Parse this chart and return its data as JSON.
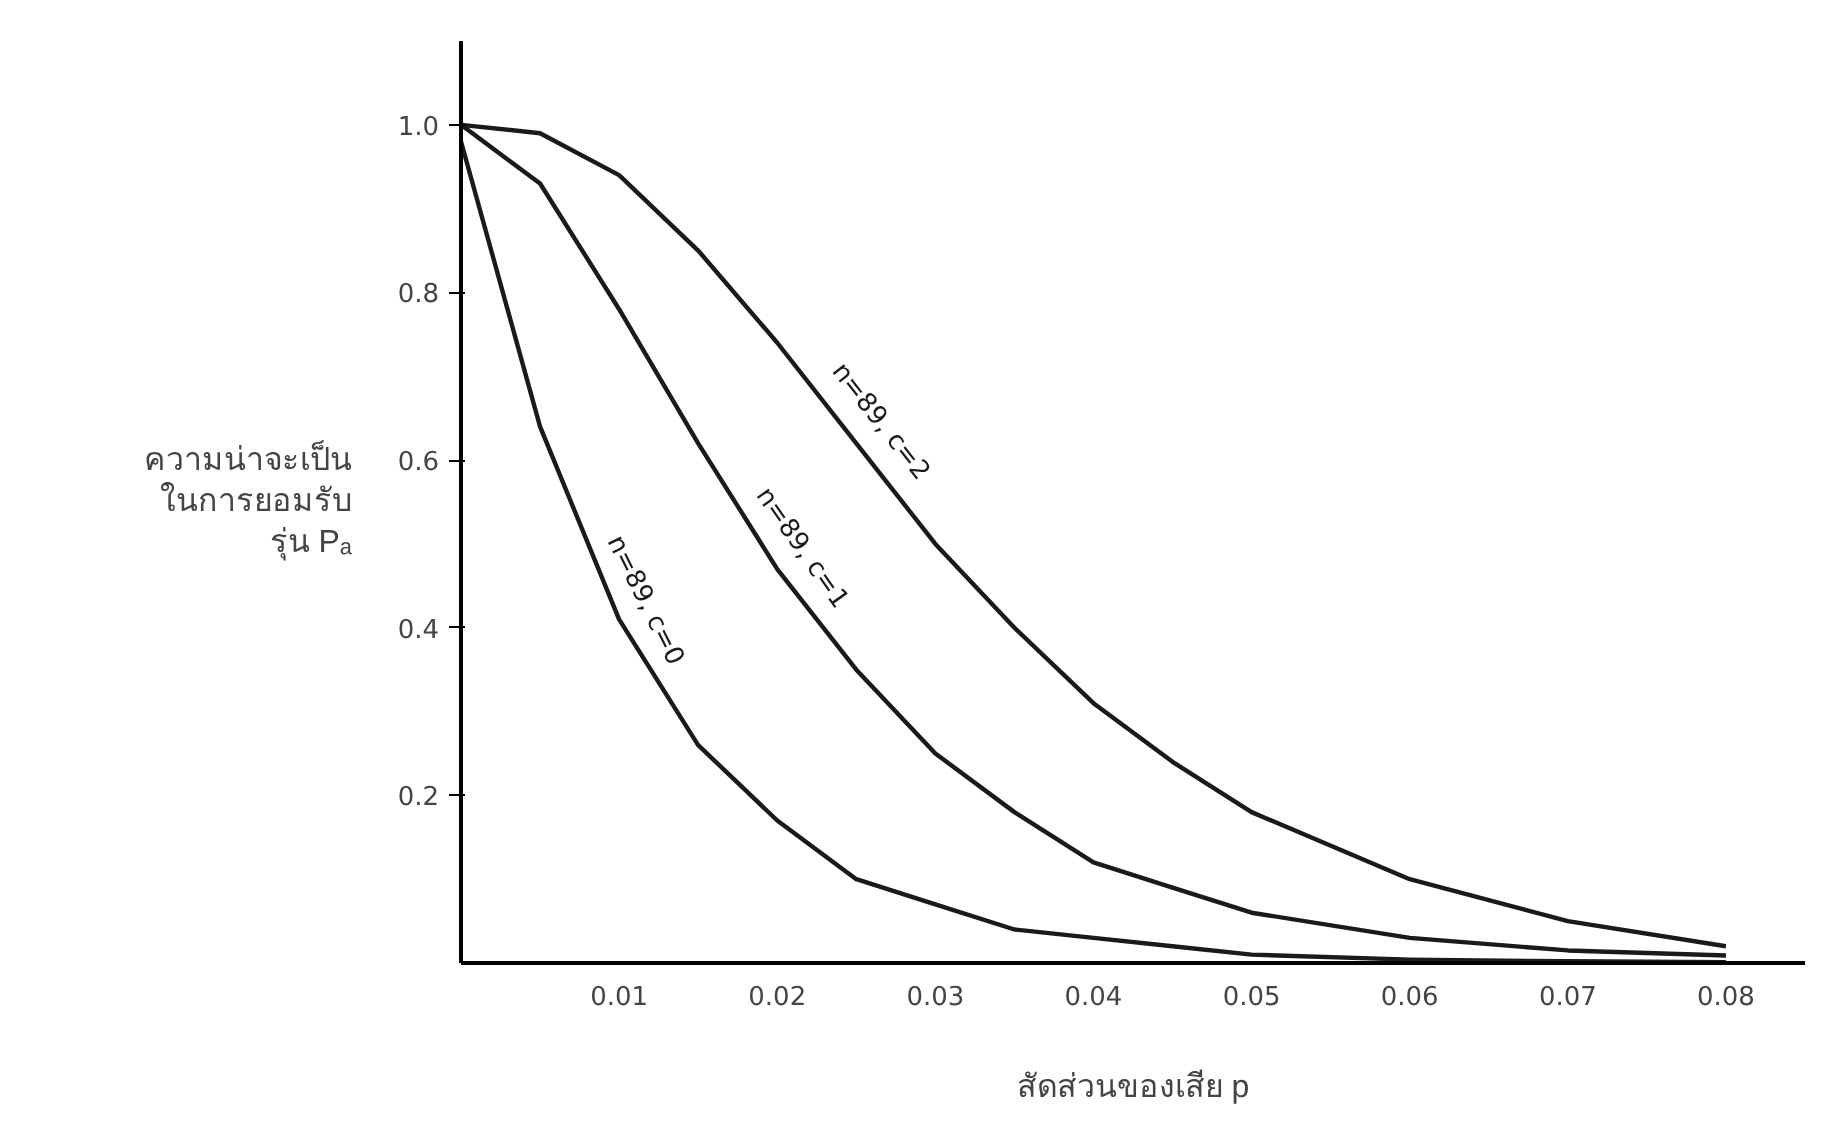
{
  "chart_data": {
    "type": "line",
    "xlabel": "สัดส่วนของเสีย p",
    "ylabel": "ความน่าจะเป็น\nในการยอมรับ\nรุ่น Pₐ",
    "x": [
      0,
      0.005,
      0.01,
      0.015,
      0.02,
      0.025,
      0.03,
      0.035,
      0.04,
      0.045,
      0.05,
      0.06,
      0.07,
      0.08
    ],
    "series": [
      {
        "name": "n=89, c=0",
        "color": "#1a1a1a",
        "values": [
          0.98,
          0.64,
          0.41,
          0.26,
          0.17,
          0.1,
          0.07,
          0.04,
          0.03,
          0.02,
          0.01,
          0.004,
          0.002,
          0.001
        ]
      },
      {
        "name": "n=89, c=1",
        "color": "#1a1a1a",
        "values": [
          1.0,
          0.93,
          0.78,
          0.62,
          0.47,
          0.35,
          0.25,
          0.18,
          0.12,
          0.09,
          0.06,
          0.03,
          0.015,
          0.009
        ]
      },
      {
        "name": "n=89, c=2",
        "color": "#1a1a1a",
        "values": [
          1.0,
          0.99,
          0.94,
          0.85,
          0.74,
          0.62,
          0.5,
          0.4,
          0.31,
          0.24,
          0.18,
          0.1,
          0.05,
          0.02
        ]
      }
    ],
    "xlim": [
      0,
      0.085
    ],
    "ylim": [
      0,
      1.1
    ],
    "xticks": [
      0.01,
      0.02,
      0.03,
      0.04,
      0.05,
      0.06,
      0.07,
      0.08
    ],
    "yticks": [
      0.2,
      0.4,
      0.6,
      0.8,
      {
        "value": 1,
        "label": "1.0"
      }
    ],
    "grid": false,
    "marker": "none",
    "line_style": "solid"
  }
}
